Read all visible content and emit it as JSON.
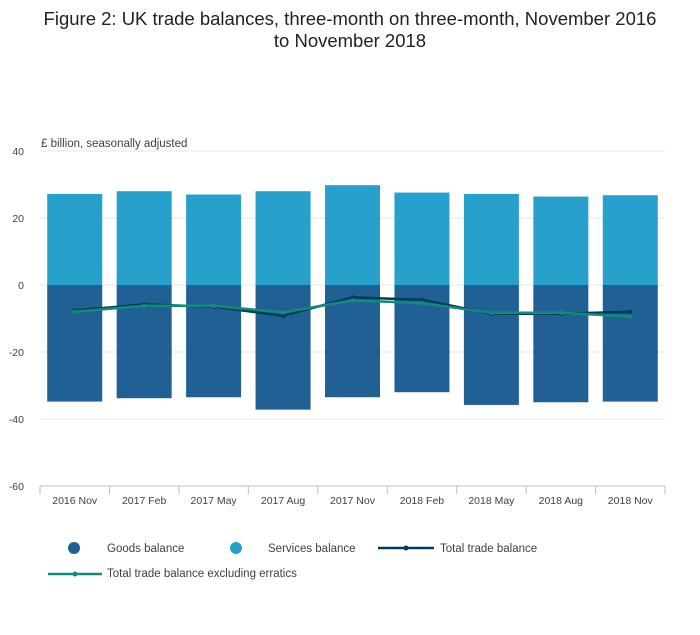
{
  "title_line1": "Figure 2: UK trade balances, three-month on three-month, November 2016",
  "title_line2": "to November 2018",
  "chart_data": {
    "type": "bar",
    "stacked": true,
    "ylabel": "£ billion, seasonally adjusted",
    "ylim": [
      -60,
      40
    ],
    "yticks": [
      40,
      20,
      0,
      -20,
      -40,
      -60
    ],
    "grid": true,
    "legend_position": "bottom",
    "categories": [
      "2016 Nov",
      "2017 Feb",
      "2017 May",
      "2017 Aug",
      "2017 Nov",
      "2018 Feb",
      "2018 May",
      "2018 Aug",
      "2018 Nov"
    ],
    "series": [
      {
        "name": "Goods balance",
        "kind": "bar",
        "color": "#206095",
        "values": [
          -34.8,
          -33.8,
          -33.5,
          -37.2,
          -33.5,
          -32.0,
          -35.8,
          -35.0,
          -34.8
        ]
      },
      {
        "name": "Services balance",
        "kind": "bar",
        "color": "#27a0cc",
        "values": [
          27.2,
          28.0,
          27.0,
          28.0,
          29.8,
          27.6,
          27.2,
          26.4,
          26.8
        ]
      },
      {
        "name": "Total trade balance",
        "kind": "line",
        "color": "#003c57",
        "values": [
          -7.6,
          -5.8,
          -6.5,
          -9.2,
          -3.7,
          -4.4,
          -8.6,
          -8.6,
          -8.0
        ]
      },
      {
        "name": "Total trade balance excluding erratics",
        "kind": "line",
        "color": "#118c7b",
        "values": [
          -8.0,
          -6.2,
          -6.2,
          -8.2,
          -4.6,
          -5.4,
          -8.3,
          -8.3,
          -9.4
        ]
      }
    ]
  }
}
